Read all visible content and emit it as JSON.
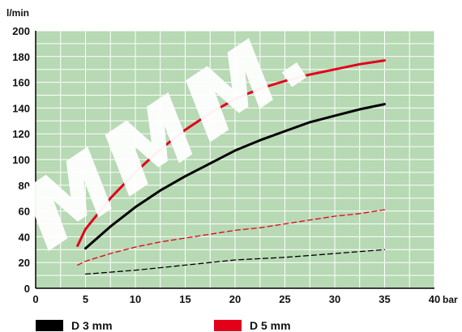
{
  "chart_data": {
    "type": "line",
    "xlabel": "bar",
    "ylabel": "l/min",
    "xlim": [
      0,
      40
    ],
    "ylim": [
      0,
      200
    ],
    "x_ticks": [
      0,
      5,
      10,
      15,
      20,
      25,
      30,
      35,
      40
    ],
    "y_ticks": [
      0,
      20,
      40,
      60,
      80,
      100,
      120,
      140,
      160,
      180,
      200
    ],
    "grid": true,
    "legend_position": "bottom",
    "background_color": "#b7d9b4",
    "grid_color": "#ffffff",
    "legend": [
      {
        "label": "D 3 mm",
        "color": "#000000"
      },
      {
        "label": "D 5 mm",
        "color": "#e3001b"
      }
    ],
    "series": [
      {
        "color": "#000000",
        "style": "solid",
        "x": [
          5,
          7.5,
          10,
          12.5,
          15,
          17.5,
          20,
          22.5,
          25,
          27.5,
          30,
          32.5,
          35
        ],
        "y": [
          31,
          48,
          63,
          76,
          87,
          97,
          107,
          115,
          122,
          129,
          134,
          139,
          143
        ]
      },
      {
        "color": "#000000",
        "style": "dashed",
        "x": [
          5,
          7.5,
          10,
          12.5,
          15,
          17.5,
          20,
          22.5,
          25,
          27.5,
          30,
          32.5,
          35
        ],
        "y": [
          11,
          12.5,
          14,
          16,
          18,
          20,
          22,
          23,
          24,
          25.5,
          27,
          28.5,
          30
        ]
      },
      {
        "color": "#e3001b",
        "style": "solid",
        "x": [
          4.2,
          5,
          7.5,
          10,
          12.5,
          15,
          17.5,
          20,
          22.5,
          25,
          27.5,
          30,
          32.5,
          35
        ],
        "y": [
          33,
          46,
          70,
          90,
          108,
          123,
          136,
          147,
          155,
          161,
          166,
          170,
          174,
          177
        ]
      },
      {
        "color": "#e3001b",
        "style": "dashed",
        "x": [
          4.2,
          5,
          7.5,
          10,
          12.5,
          15,
          17.5,
          20,
          22.5,
          25,
          27.5,
          30,
          32.5,
          35
        ],
        "y": [
          18,
          21,
          27,
          32,
          36,
          39,
          42,
          45,
          47,
          50,
          53,
          56,
          58,
          61
        ]
      }
    ],
    "watermark": "MWW."
  }
}
